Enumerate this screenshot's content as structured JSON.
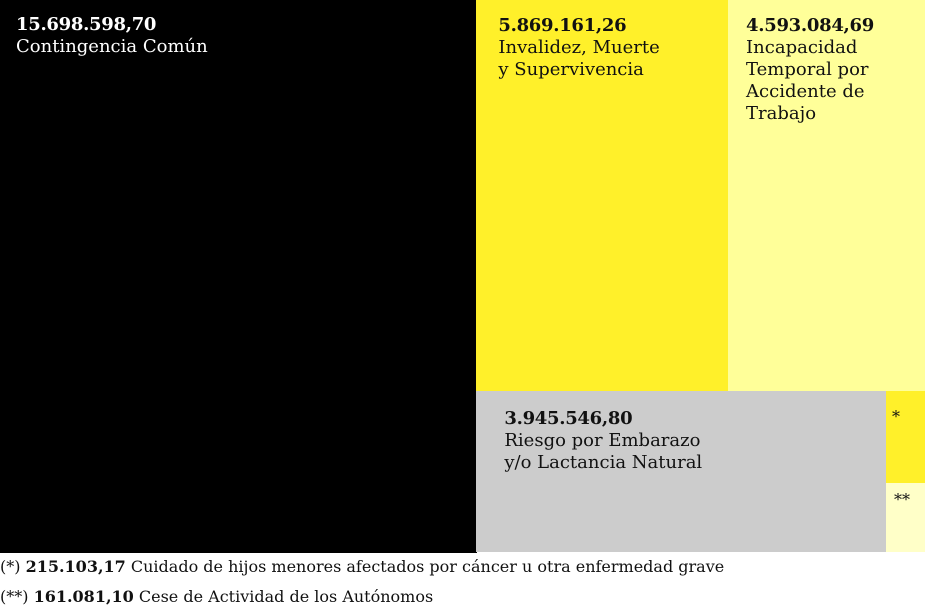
{
  "chart_data": {
    "type": "treemap",
    "items": [
      {
        "value_label": "15.698.598,70",
        "value": 15698598.7,
        "label": "Contingencia Común",
        "color": "#000000",
        "text_color": "#ffffff"
      },
      {
        "value_label": "5.869.161,26",
        "value": 5869161.26,
        "label": "Invalidez, Muerte\ny Supervivencia",
        "color": "#fff02a",
        "text_color": "#111111"
      },
      {
        "value_label": "4.593.084,69",
        "value": 4593084.69,
        "label": "Incapacidad\nTemporal por\nAccidente de\nTrabajo",
        "color": "#ffff99",
        "text_color": "#111111"
      },
      {
        "value_label": "3.945.546,80",
        "value": 3945546.8,
        "label": "Riesgo por Embarazo\ny/o Lactancia Natural",
        "color": "#cccccc",
        "text_color": "#111111"
      },
      {
        "value_label": "215.103,17",
        "value": 215103.17,
        "marker": "*",
        "label": "Cuidado de hijos menores afectados por cáncer u otra enfermedad grave",
        "color": "#fff02a",
        "text_color": "#111111"
      },
      {
        "value_label": "161.081,10",
        "value": 161081.1,
        "marker": "**",
        "label": "Cese de Actividad de los Autónomos",
        "color": "#ffffc8",
        "text_color": "#111111"
      }
    ],
    "footnotes": [
      {
        "prefix": "(*)",
        "value": "215.103,17",
        "text": "Cuidado de hijos menores afectados por cáncer u otra enfermedad grave"
      },
      {
        "prefix": "(**)",
        "value": "161.081,10",
        "text": "Cese de Actividad de los Autónomos"
      }
    ]
  }
}
